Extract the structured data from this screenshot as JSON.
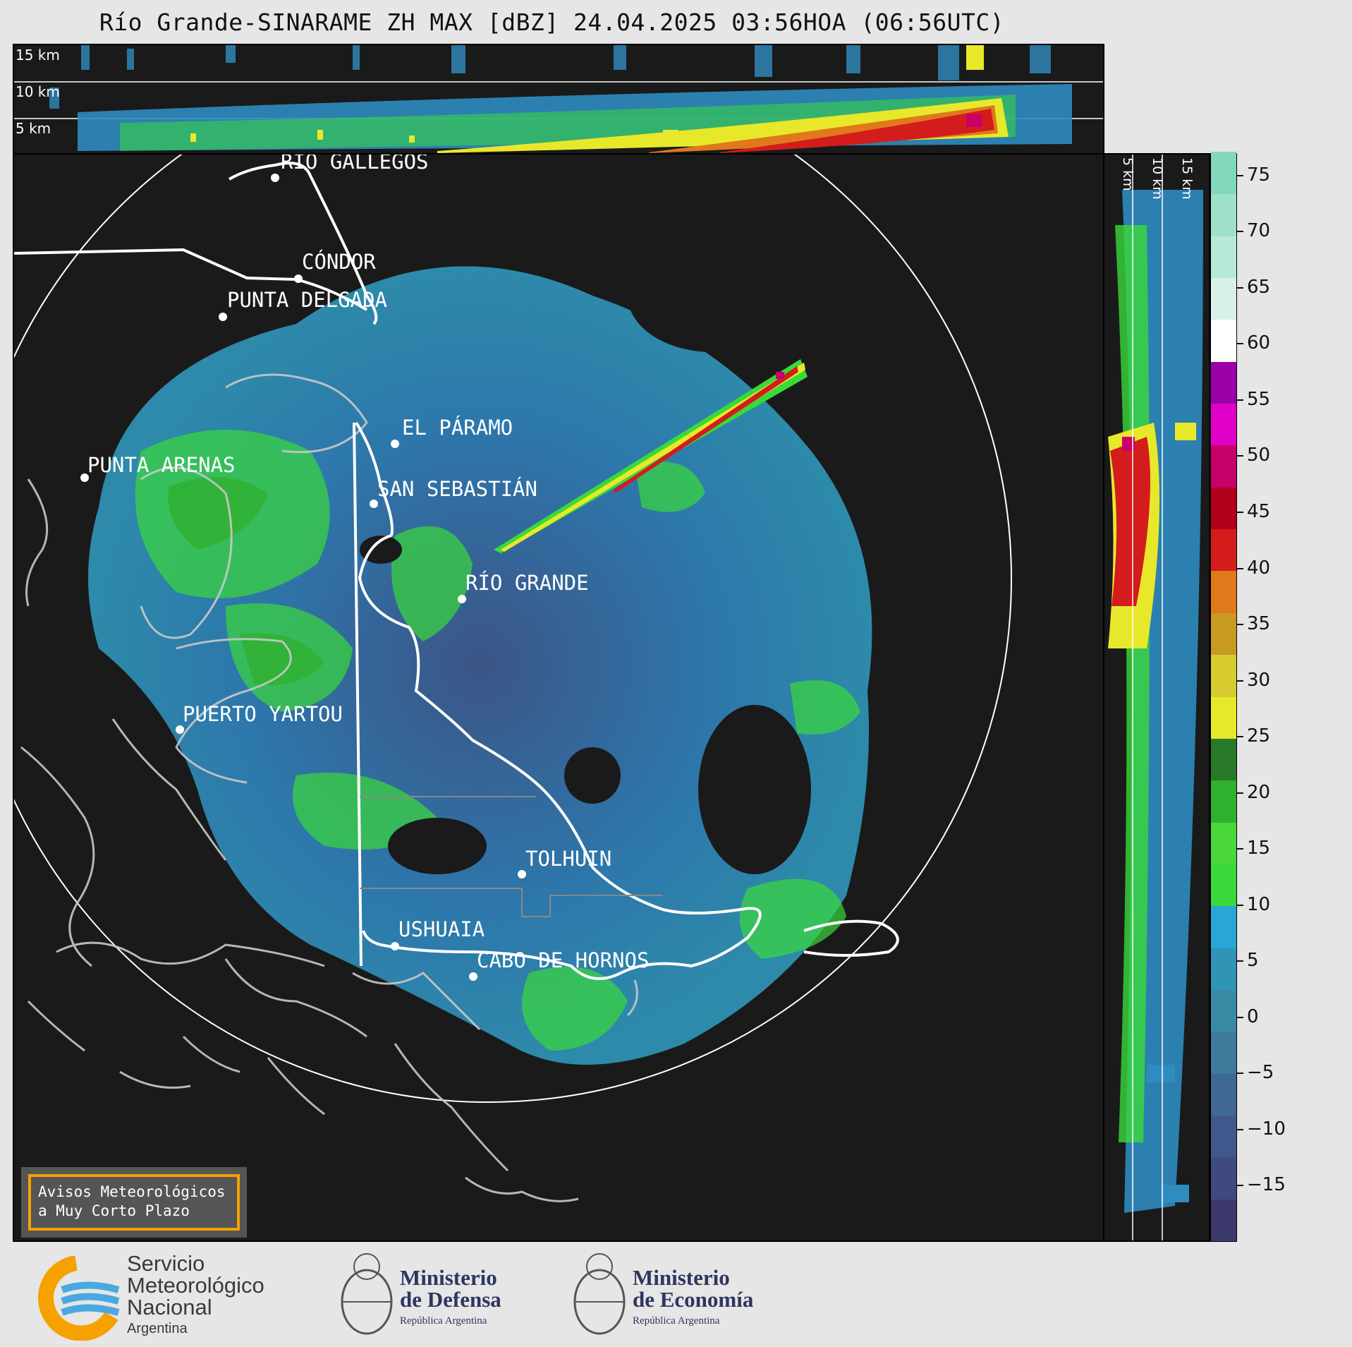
{
  "title": "Río Grande-SINARAME ZH MAX [dBZ] 24.04.2025 03:56HOA (06:56UTC)",
  "top_panel_levels": [
    "15 km",
    "10 km",
    "5 km"
  ],
  "right_panel_levels": [
    "5 km",
    "10 km",
    "15 km"
  ],
  "colorbar": {
    "unit": "dBZ",
    "ticks": [
      "75",
      "70",
      "65",
      "60",
      "55",
      "50",
      "45",
      "40",
      "35",
      "30",
      "25",
      "20",
      "15",
      "10",
      "5",
      "0",
      "−5",
      "−10",
      "−15"
    ],
    "colors": [
      "#3c3a6c",
      "#3f4a7f",
      "#41588c",
      "#3f6894",
      "#3e7a9c",
      "#3a8aa6",
      "#2f94b6",
      "#2aa6d6",
      "#3ad93a",
      "#4bd83a",
      "#2fb02f",
      "#287a28",
      "#e8e82a",
      "#d6cc30",
      "#c89a20",
      "#e0781c",
      "#d41c1c",
      "#b0001c",
      "#c8006a",
      "#e000c8",
      "#9a00a6",
      "#ffffff",
      "#d8f0e8",
      "#b8e8d6",
      "#9ee0c8",
      "#82d8bc"
    ],
    "range": [
      -20,
      77
    ]
  },
  "cities": [
    {
      "name": "RÍO GALLEGOS"
    },
    {
      "name": "CÓNDOR"
    },
    {
      "name": "PUNTA DELGADA"
    },
    {
      "name": "EL PÁRAMO"
    },
    {
      "name": "PUNTA ARENAS"
    },
    {
      "name": "SAN SEBASTIÁN"
    },
    {
      "name": "RÍO GRANDE"
    },
    {
      "name": "PUERTO YARTOU"
    },
    {
      "name": "TOLHUIN"
    },
    {
      "name": "USHUAIA"
    },
    {
      "name": "CABO DE HORNOS"
    }
  ],
  "notice": {
    "line1": "Avisos Meteorológicos",
    "line2": "a Muy Corto Plazo"
  },
  "logos": {
    "smn": {
      "line1": "Servicio",
      "line2": "Meteorológico",
      "line3": "Nacional",
      "sub": "Argentina"
    },
    "defensa": {
      "line1": "Ministerio",
      "line2": "de Defensa",
      "sub": "República Argentina"
    },
    "economia": {
      "line1": "Ministerio",
      "line2": "de Economía",
      "sub": "República Argentina"
    }
  }
}
